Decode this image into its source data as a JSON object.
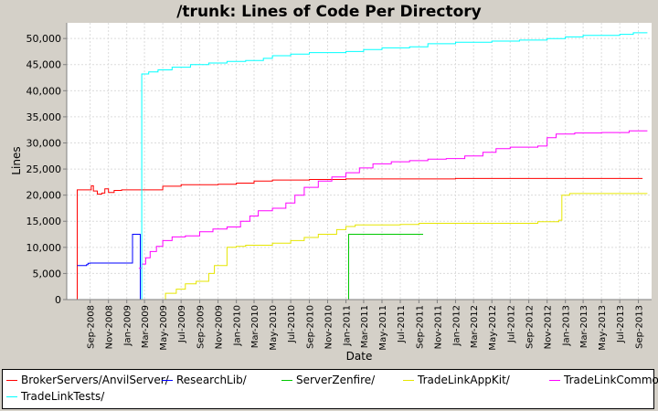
{
  "chart_data": {
    "type": "line",
    "title": "/trunk: Lines of Code Per Directory",
    "xlabel": "Date",
    "ylabel": "Lines",
    "ylim": [
      0,
      53000
    ],
    "xlim": [
      "2008-06-15",
      "2013-10-15"
    ],
    "y_ticks": [
      "0",
      "5,000",
      "10,000",
      "15,000",
      "20,000",
      "25,000",
      "30,000",
      "35,000",
      "40,000",
      "45,000",
      "50,000"
    ],
    "x_ticks": [
      "Sep-2008",
      "Nov-2008",
      "Jan-2009",
      "Mar-2009",
      "May-2009",
      "Jul-2009",
      "Sep-2009",
      "Nov-2009",
      "Jan-2010",
      "Mar-2010",
      "May-2010",
      "Jul-2010",
      "Sep-2010",
      "Nov-2010",
      "Jan-2011",
      "Mar-2011",
      "May-2011",
      "Jul-2011",
      "Sep-2011",
      "Nov-2011",
      "Jan-2012",
      "Mar-2012",
      "May-2012",
      "Jul-2012",
      "Sep-2012",
      "Nov-2012",
      "Jan-2013",
      "Mar-2013",
      "May-2013",
      "Jul-2013",
      "Sep-2013"
    ],
    "grid": true,
    "legend_position": "bottom",
    "series": [
      {
        "name": "BrokerServers/AnvilServer/",
        "color": "#ff0000",
        "step": true,
        "points": [
          [
            "2008-07-20",
            0
          ],
          [
            "2008-07-20",
            21000
          ],
          [
            "2008-09-01",
            21000
          ],
          [
            "2008-09-05",
            21800
          ],
          [
            "2008-09-12",
            20800
          ],
          [
            "2008-09-25",
            20200
          ],
          [
            "2008-10-10",
            20400
          ],
          [
            "2008-10-20",
            21200
          ],
          [
            "2008-11-01",
            20500
          ],
          [
            "2008-11-20",
            20900
          ],
          [
            "2008-12-15",
            21000
          ],
          [
            "2009-02-01",
            21000
          ],
          [
            "2009-05-01",
            21700
          ],
          [
            "2009-07-01",
            22000
          ],
          [
            "2009-11-01",
            22100
          ],
          [
            "2010-01-01",
            22300
          ],
          [
            "2010-03-01",
            22700
          ],
          [
            "2010-05-01",
            22900
          ],
          [
            "2010-09-01",
            23000
          ],
          [
            "2011-01-01",
            23100
          ],
          [
            "2012-01-01",
            23200
          ],
          [
            "2013-09-15",
            23200
          ]
        ]
      },
      {
        "name": "ResearchLib/",
        "color": "#0000ff",
        "step": true,
        "points": [
          [
            "2008-07-20",
            6500
          ],
          [
            "2008-08-20",
            6700
          ],
          [
            "2008-08-25",
            6950
          ],
          [
            "2008-09-01",
            7000
          ],
          [
            "2009-01-15",
            7000
          ],
          [
            "2009-01-20",
            12500
          ],
          [
            "2009-02-15",
            12500
          ],
          [
            "2009-02-15",
            0
          ]
        ]
      },
      {
        "name": "ServerZenfire/",
        "color": "#00c800",
        "step": true,
        "points": [
          [
            "2011-01-10",
            0
          ],
          [
            "2011-01-10",
            12500
          ],
          [
            "2011-09-15",
            12500
          ]
        ]
      },
      {
        "name": "TradeLinkAppKit/",
        "color": "#e6e600",
        "step": true,
        "points": [
          [
            "2009-05-10",
            0
          ],
          [
            "2009-05-10",
            1200
          ],
          [
            "2009-06-15",
            2000
          ],
          [
            "2009-07-15",
            3000
          ],
          [
            "2009-08-20",
            3500
          ],
          [
            "2009-10-01",
            5000
          ],
          [
            "2009-10-20",
            6500
          ],
          [
            "2009-12-01",
            10000
          ],
          [
            "2010-01-01",
            10200
          ],
          [
            "2010-02-01",
            10400
          ],
          [
            "2010-05-01",
            10800
          ],
          [
            "2010-07-01",
            11300
          ],
          [
            "2010-08-15",
            11900
          ],
          [
            "2010-10-01",
            12500
          ],
          [
            "2010-12-01",
            13400
          ],
          [
            "2011-01-01",
            14000
          ],
          [
            "2011-02-01",
            14300
          ],
          [
            "2011-07-01",
            14400
          ],
          [
            "2011-09-01",
            14600
          ],
          [
            "2012-01-01",
            14600
          ],
          [
            "2012-10-01",
            14900
          ],
          [
            "2012-12-10",
            15200
          ],
          [
            "2012-12-20",
            20000
          ],
          [
            "2013-01-15",
            20300
          ],
          [
            "2013-10-01",
            20300
          ]
        ]
      },
      {
        "name": "TradeLinkCommon/",
        "color": "#ff00ff",
        "step": true,
        "points": [
          [
            "2009-02-10",
            6000
          ],
          [
            "2009-02-20",
            6800
          ],
          [
            "2009-03-05",
            8000
          ],
          [
            "2009-03-20",
            9200
          ],
          [
            "2009-04-10",
            10200
          ],
          [
            "2009-05-01",
            11300
          ],
          [
            "2009-06-01",
            12000
          ],
          [
            "2009-07-15",
            12200
          ],
          [
            "2009-09-01",
            13000
          ],
          [
            "2009-10-15",
            13500
          ],
          [
            "2009-12-01",
            13900
          ],
          [
            "2010-01-15",
            15000
          ],
          [
            "2010-02-15",
            16000
          ],
          [
            "2010-03-15",
            17000
          ],
          [
            "2010-05-01",
            17500
          ],
          [
            "2010-06-15",
            18500
          ],
          [
            "2010-07-15",
            20000
          ],
          [
            "2010-08-15",
            21500
          ],
          [
            "2010-10-01",
            22700
          ],
          [
            "2010-11-15",
            23500
          ],
          [
            "2011-01-01",
            24300
          ],
          [
            "2011-02-15",
            25200
          ],
          [
            "2011-04-01",
            26000
          ],
          [
            "2011-06-01",
            26400
          ],
          [
            "2011-08-01",
            26600
          ],
          [
            "2011-10-01",
            26900
          ],
          [
            "2011-12-01",
            27000
          ],
          [
            "2012-02-01",
            27500
          ],
          [
            "2012-04-01",
            28200
          ],
          [
            "2012-05-15",
            28900
          ],
          [
            "2012-07-01",
            29200
          ],
          [
            "2012-10-01",
            29400
          ],
          [
            "2012-11-01",
            31000
          ],
          [
            "2012-12-01",
            31700
          ],
          [
            "2013-02-01",
            31900
          ],
          [
            "2013-05-01",
            32000
          ],
          [
            "2013-08-01",
            32300
          ],
          [
            "2013-10-01",
            32300
          ]
        ]
      },
      {
        "name": "TradeLinkTests/",
        "color": "#00ffff",
        "step": true,
        "points": [
          [
            "2009-02-20",
            0
          ],
          [
            "2009-02-20",
            43200
          ],
          [
            "2009-03-15",
            43600
          ],
          [
            "2009-04-15",
            44000
          ],
          [
            "2009-06-01",
            44500
          ],
          [
            "2009-08-01",
            45000
          ],
          [
            "2009-10-01",
            45300
          ],
          [
            "2009-12-01",
            45600
          ],
          [
            "2010-02-01",
            45800
          ],
          [
            "2010-04-01",
            46200
          ],
          [
            "2010-05-01",
            46700
          ],
          [
            "2010-07-01",
            47000
          ],
          [
            "2010-09-01",
            47300
          ],
          [
            "2011-01-01",
            47500
          ],
          [
            "2011-03-01",
            47900
          ],
          [
            "2011-05-01",
            48200
          ],
          [
            "2011-08-01",
            48400
          ],
          [
            "2011-10-01",
            49000
          ],
          [
            "2012-01-01",
            49300
          ],
          [
            "2012-05-01",
            49500
          ],
          [
            "2012-08-01",
            49700
          ],
          [
            "2012-11-01",
            50000
          ],
          [
            "2013-01-01",
            50300
          ],
          [
            "2013-03-01",
            50600
          ],
          [
            "2013-07-01",
            50800
          ],
          [
            "2013-08-15",
            51100
          ],
          [
            "2013-10-01",
            51100
          ]
        ]
      }
    ]
  }
}
